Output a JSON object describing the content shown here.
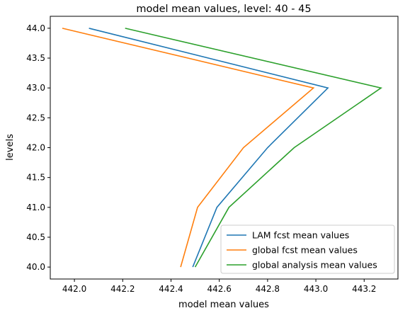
{
  "chart_data": {
    "type": "line",
    "title": "model mean values, level: 40 - 45",
    "xlabel": "model mean values",
    "ylabel": "levels",
    "xlim": [
      441.9,
      443.34
    ],
    "ylim": [
      39.8,
      44.2
    ],
    "x_ticks": [
      442.0,
      442.2,
      442.4,
      442.6,
      442.8,
      443.0,
      443.2
    ],
    "x_tick_labels": [
      "442.0",
      "442.2",
      "442.4",
      "442.6",
      "442.8",
      "443.0",
      "443.2"
    ],
    "y_ticks": [
      40.0,
      40.5,
      41.0,
      41.5,
      42.0,
      42.5,
      43.0,
      43.5,
      44.0
    ],
    "y_tick_labels": [
      "40.0",
      "40.5",
      "41.0",
      "41.5",
      "42.0",
      "42.5",
      "43.0",
      "43.5",
      "44.0"
    ],
    "grid": false,
    "legend_position": "lower-right",
    "series": [
      {
        "name": "LAM fcst mean values",
        "color": "#1f77b4",
        "x": [
          442.49,
          442.59,
          442.8,
          443.05,
          442.06
        ],
        "y": [
          40,
          41,
          42,
          43,
          44
        ]
      },
      {
        "name": "global fcst mean values",
        "color": "#ff7f0e",
        "x": [
          442.44,
          442.51,
          442.7,
          442.99,
          441.95
        ],
        "y": [
          40,
          41,
          42,
          43,
          44
        ]
      },
      {
        "name": "global analysis mean values",
        "color": "#2ca02c",
        "x": [
          442.5,
          442.64,
          442.91,
          443.27,
          442.21
        ],
        "y": [
          40,
          41,
          42,
          43,
          44
        ]
      }
    ]
  }
}
